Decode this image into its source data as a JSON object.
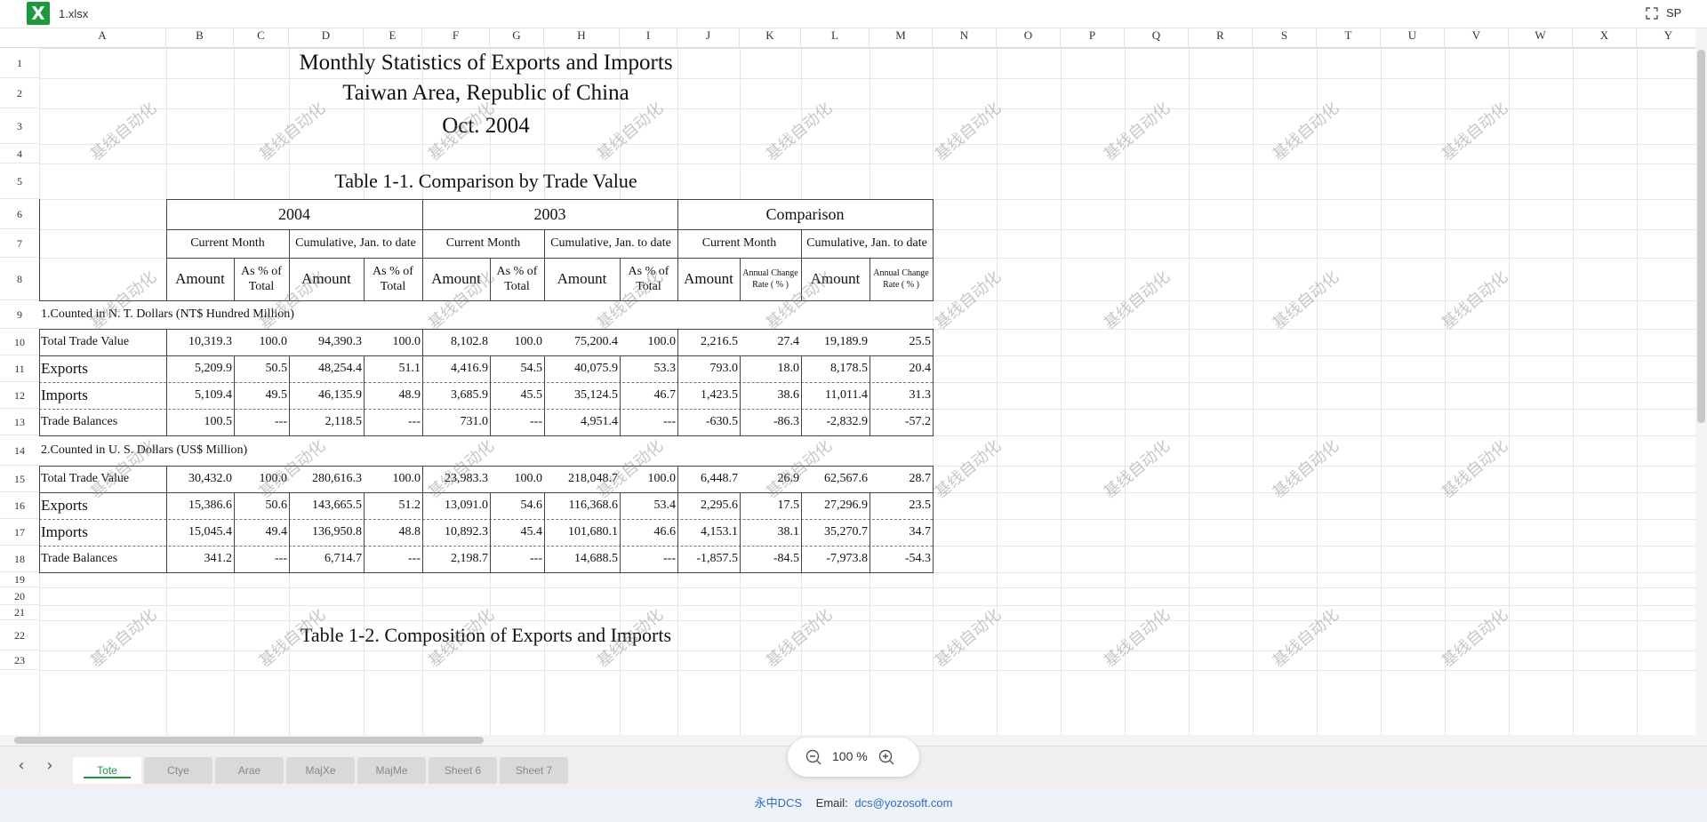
{
  "app": {
    "file_name": "1.xlsx",
    "user_initials": "SP",
    "logo_letter": "X"
  },
  "columns": [
    "A",
    "B",
    "C",
    "D",
    "E",
    "F",
    "G",
    "H",
    "I",
    "J",
    "K",
    "L",
    "M",
    "N",
    "O",
    "P",
    "Q",
    "R",
    "S",
    "T",
    "U",
    "V",
    "W",
    "X",
    "Y"
  ],
  "rows": [
    "1",
    "2",
    "3",
    "4",
    "5",
    "6",
    "7",
    "8",
    "9",
    "10",
    "11",
    "12",
    "13",
    "14",
    "15",
    "16",
    "17",
    "18",
    "19",
    "20",
    "21",
    "22",
    "23"
  ],
  "watermark": "基线自动化",
  "report": {
    "title1": "Monthly Statistics of  Exports and Imports",
    "title2": "Taiwan Area, Republic of China",
    "title3": "Oct. 2004",
    "table1_title": "Table 1-1.  Comparison by Trade Value",
    "table2_title": "Table 1-2.  Composition of  Exports and Imports",
    "year_2004": "2004",
    "year_2003": "2003",
    "comparison": "Comparison",
    "current_month": "Current Month",
    "cumulative": "Cumulative, Jan. to date",
    "amount": "Amount",
    "pct_total": "As % of Total",
    "annual_change": "Annual Change Rate ( % )",
    "section1": "1.Counted in N. T. Dollars (NT$ Hundred Million)",
    "section2": "2.Counted in U. S. Dollars (US$ Million)"
  },
  "section1_rows": [
    {
      "label": "Total Trade Value",
      "values": [
        "10,319.3",
        "100.0",
        "94,390.3",
        "100.0",
        "8,102.8",
        "100.0",
        "75,200.4",
        "100.0",
        "2,216.5",
        "27.4",
        "19,189.9",
        "25.5"
      ]
    },
    {
      "label": "Exports",
      "values": [
        "5,209.9",
        "50.5",
        "48,254.4",
        "51.1",
        "4,416.9",
        "54.5",
        "40,075.9",
        "53.3",
        "793.0",
        "18.0",
        "8,178.5",
        "20.4"
      ]
    },
    {
      "label": "Imports",
      "values": [
        "5,109.4",
        "49.5",
        "46,135.9",
        "48.9",
        "3,685.9",
        "45.5",
        "35,124.5",
        "46.7",
        "1,423.5",
        "38.6",
        "11,011.4",
        "31.3"
      ]
    },
    {
      "label": "Trade Balances",
      "values": [
        "100.5",
        "---",
        "2,118.5",
        "---",
        "731.0",
        "---",
        "4,951.4",
        "---",
        "-630.5",
        "-86.3",
        "-2,832.9",
        "-57.2"
      ]
    }
  ],
  "section2_rows": [
    {
      "label": "Total Trade Value",
      "values": [
        "30,432.0",
        "100.0",
        "280,616.3",
        "100.0",
        "23,983.3",
        "100.0",
        "218,048.7",
        "100.0",
        "6,448.7",
        "26.9",
        "62,567.6",
        "28.7"
      ]
    },
    {
      "label": "Exports",
      "values": [
        "15,386.6",
        "50.6",
        "143,665.5",
        "51.2",
        "13,091.0",
        "54.6",
        "116,368.6",
        "53.4",
        "2,295.6",
        "17.5",
        "27,296.9",
        "23.5"
      ]
    },
    {
      "label": "Imports",
      "values": [
        "15,045.4",
        "49.4",
        "136,950.8",
        "48.8",
        "10,892.3",
        "45.4",
        "101,680.1",
        "46.6",
        "4,153.1",
        "38.1",
        "35,270.7",
        "34.7"
      ]
    },
    {
      "label": "Trade Balances",
      "values": [
        "341.2",
        "---",
        "6,714.7",
        "---",
        "2,198.7",
        "---",
        "14,688.5",
        "---",
        "-1,857.5",
        "-84.5",
        "-7,973.8",
        "-54.3"
      ]
    }
  ],
  "tabs": [
    "Tote",
    "Ctye",
    "Arae",
    "MajXe",
    "MajMe",
    "Sheet 6",
    "Sheet 7"
  ],
  "active_tab": 0,
  "zoom": {
    "level": "100 %"
  },
  "footer": {
    "brand": "永中DCS",
    "email_label": "Email:",
    "email": "dcs@yozosoft.com"
  },
  "colors": {
    "accent": "#1d9b3c",
    "link": "#2a6dd6"
  }
}
